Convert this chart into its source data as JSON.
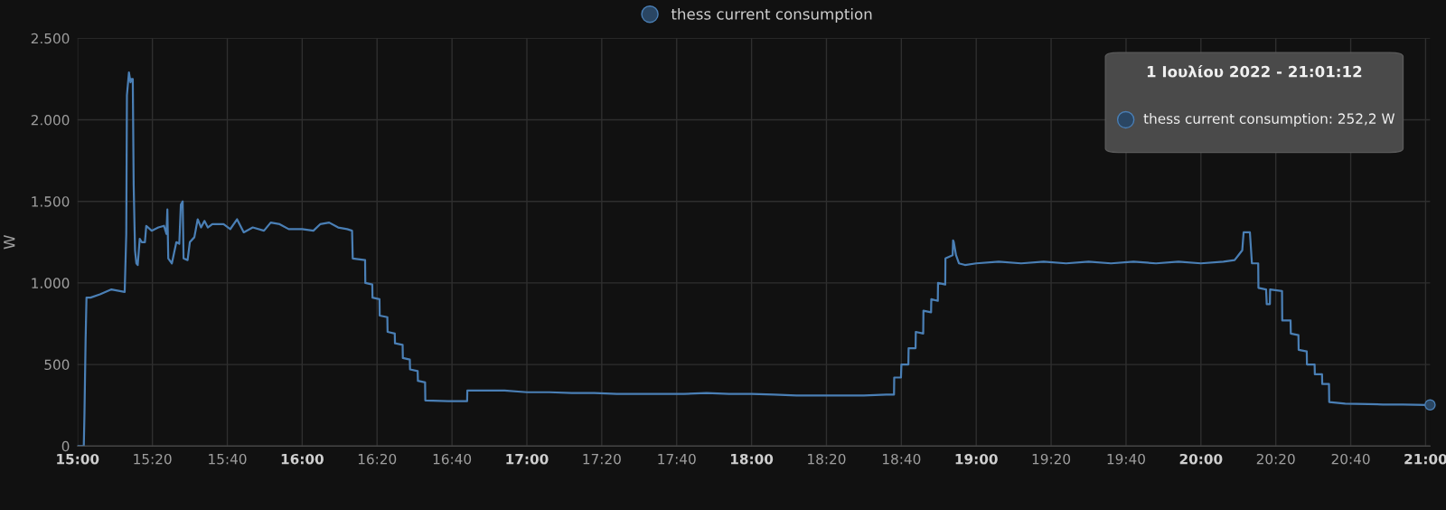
{
  "chart_data": {
    "type": "line",
    "ylabel": "W",
    "legend": "top",
    "grid": true,
    "marker": "none",
    "line_style": "solid",
    "xlim": [
      15,
      21.02
    ],
    "ylim": [
      0,
      2500
    ],
    "xticks": [
      {
        "value": 15,
        "label": "15:00"
      },
      {
        "value": 15.3333,
        "label": "15:20"
      },
      {
        "value": 15.6667,
        "label": "15:40"
      },
      {
        "value": 16,
        "label": "16:00"
      },
      {
        "value": 16.3333,
        "label": "16:20"
      },
      {
        "value": 16.6667,
        "label": "16:40"
      },
      {
        "value": 17,
        "label": "17:00"
      },
      {
        "value": 17.3333,
        "label": "17:20"
      },
      {
        "value": 17.6667,
        "label": "17:40"
      },
      {
        "value": 18,
        "label": "18:00"
      },
      {
        "value": 18.3333,
        "label": "18:20"
      },
      {
        "value": 18.6667,
        "label": "18:40"
      },
      {
        "value": 19,
        "label": "19:00"
      },
      {
        "value": 19.3333,
        "label": "19:20"
      },
      {
        "value": 19.6667,
        "label": "19:40"
      },
      {
        "value": 20,
        "label": "20:00"
      },
      {
        "value": 20.3333,
        "label": "20:20"
      },
      {
        "value": 20.6667,
        "label": "20:40"
      },
      {
        "value": 21,
        "label": "21:00"
      }
    ],
    "yticks": [
      0,
      500,
      {
        "value": 1000,
        "label": "1.000"
      },
      {
        "value": 1500,
        "label": "1.500"
      },
      {
        "value": 2000,
        "label": "2.000"
      },
      {
        "value": 2500,
        "label": "2.500"
      }
    ],
    "annotations": [
      "1 Ιουλίου 2022 - 21:01:12",
      "thess current consumption: 252,2 W"
    ],
    "series": [
      {
        "name": "thess current consumption",
        "color": "#4a7fb5",
        "x": [
          15.0,
          15.028,
          15.031,
          15.036,
          15.04,
          15.058,
          15.1,
          15.151,
          15.21,
          15.217,
          15.22,
          15.229,
          15.236,
          15.241,
          15.246,
          15.25,
          15.256,
          15.262,
          15.268,
          15.277,
          15.286,
          15.3,
          15.306,
          15.33,
          15.36,
          15.385,
          15.396,
          15.4,
          15.404,
          15.42,
          15.44,
          15.453,
          15.46,
          15.468,
          15.472,
          15.49,
          15.5,
          15.52,
          15.535,
          15.55,
          15.565,
          15.58,
          15.6,
          15.65,
          15.68,
          15.71,
          15.74,
          15.78,
          15.83,
          15.86,
          15.9,
          15.94,
          16.0,
          16.05,
          16.08,
          16.12,
          16.16,
          16.2,
          16.222,
          16.225,
          16.28,
          16.281,
          16.312,
          16.313,
          16.344,
          16.345,
          16.379,
          16.38,
          16.412,
          16.413,
          16.447,
          16.448,
          16.479,
          16.48,
          16.514,
          16.515,
          16.547,
          16.548,
          16.65,
          16.734,
          16.735,
          16.8,
          16.9,
          17.0,
          17.1,
          17.2,
          17.3,
          17.4,
          17.5,
          17.6,
          17.7,
          17.8,
          17.9,
          18.0,
          18.1,
          18.2,
          18.3,
          18.4,
          18.5,
          18.6,
          18.634,
          18.635,
          18.665,
          18.667,
          18.698,
          18.699,
          18.73,
          18.731,
          18.764,
          18.765,
          18.799,
          18.8,
          18.829,
          18.83,
          18.862,
          18.863,
          18.895,
          18.897,
          18.9,
          18.91,
          18.923,
          18.95,
          19.0,
          19.1,
          19.2,
          19.3,
          19.4,
          19.5,
          19.6,
          19.7,
          19.8,
          19.9,
          20.0,
          20.1,
          20.15,
          20.167,
          20.184,
          20.19,
          20.218,
          20.227,
          20.255,
          20.256,
          20.29,
          20.293,
          20.307,
          20.308,
          20.361,
          20.362,
          20.399,
          20.4,
          20.434,
          20.435,
          20.471,
          20.472,
          20.506,
          20.507,
          20.539,
          20.54,
          20.57,
          20.571,
          20.642,
          20.81,
          20.9,
          21.006,
          21.02
        ],
        "values": [
          0,
          0,
          200,
          650,
          910,
          910,
          930,
          960,
          945,
          1300,
          2150,
          2290,
          2230,
          2250,
          2250,
          1600,
          1200,
          1120,
          1110,
          1270,
          1250,
          1250,
          1350,
          1320,
          1340,
          1350,
          1300,
          1450,
          1150,
          1120,
          1250,
          1240,
          1480,
          1500,
          1150,
          1140,
          1250,
          1280,
          1390,
          1340,
          1380,
          1340,
          1360,
          1360,
          1330,
          1390,
          1310,
          1340,
          1320,
          1370,
          1360,
          1330,
          1330,
          1320,
          1360,
          1370,
          1340,
          1330,
          1320,
          1150,
          1140,
          1000,
          990,
          910,
          900,
          800,
          790,
          700,
          690,
          630,
          620,
          540,
          530,
          470,
          460,
          400,
          390,
          280,
          275,
          275,
          340,
          340,
          340,
          330,
          330,
          325,
          325,
          320,
          320,
          320,
          320,
          325,
          320,
          320,
          315,
          310,
          310,
          310,
          310,
          315,
          315,
          420,
          420,
          500,
          500,
          600,
          600,
          700,
          690,
          830,
          820,
          900,
          890,
          1000,
          990,
          1150,
          1170,
          1260,
          1250,
          1170,
          1120,
          1110,
          1120,
          1130,
          1120,
          1130,
          1120,
          1130,
          1120,
          1130,
          1120,
          1130,
          1120,
          1130,
          1140,
          1170,
          1200,
          1310,
          1310,
          1120,
          1120,
          970,
          960,
          870,
          870,
          960,
          950,
          770,
          770,
          690,
          680,
          590,
          580,
          500,
          500,
          440,
          440,
          380,
          380,
          270,
          260,
          255,
          255,
          252,
          252.2
        ]
      }
    ]
  }
}
